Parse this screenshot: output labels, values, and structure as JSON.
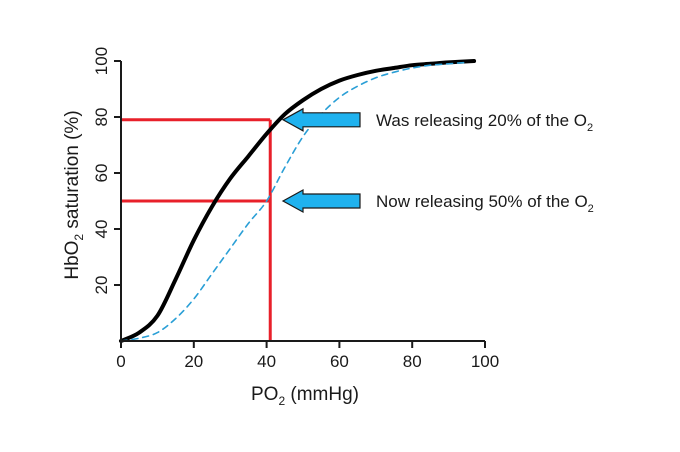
{
  "chart_data": {
    "type": "line",
    "xlabel": {
      "main": "PO",
      "sub": "2",
      "rest": " (mmHg)"
    },
    "ylabel": {
      "main": "HbO",
      "sub": "2",
      "rest": " saturation (%)"
    },
    "xlim": [
      0,
      100
    ],
    "ylim": [
      0,
      100
    ],
    "xticks": [
      0,
      20,
      40,
      60,
      80,
      100
    ],
    "yticks": [
      20,
      40,
      60,
      80,
      100
    ],
    "xtick_labels": [
      "0",
      "20",
      "40",
      "60",
      "80",
      "100"
    ],
    "ytick_labels": [
      "20",
      "40",
      "60",
      "80",
      "100"
    ],
    "grid": false,
    "series": [
      {
        "style": "solid",
        "color": "#000000",
        "x": [
          0,
          5,
          10,
          15,
          20,
          25,
          30,
          35,
          40,
          45,
          50,
          55,
          60,
          65,
          70,
          75,
          80,
          85,
          90,
          97
        ],
        "y": [
          0,
          3,
          9,
          22,
          36,
          48,
          58,
          66,
          74,
          81,
          86,
          90,
          93,
          95,
          96.5,
          97.5,
          98.5,
          99,
          99.5,
          100
        ]
      },
      {
        "style": "dashed",
        "color": "#2a9fd6",
        "x": [
          0,
          5,
          10,
          15,
          20,
          25,
          30,
          35,
          40,
          45,
          50,
          55,
          60,
          65,
          70,
          75,
          80,
          85,
          90,
          95
        ],
        "y": [
          0,
          1,
          3,
          8,
          15,
          24,
          33,
          42,
          50,
          62,
          73,
          81,
          87,
          91,
          94,
          96,
          97.5,
          98.5,
          99,
          99.5
        ]
      }
    ],
    "guides": [
      {
        "y": 79,
        "x_end": 41,
        "color": "#e8202a"
      },
      {
        "y": 50,
        "x_end": 41,
        "color": "#e8202a"
      }
    ],
    "guide_vertical": {
      "x": 41,
      "y_top": 79,
      "color": "#e8202a"
    },
    "annotations": [
      {
        "text": "Was releasing 20% of the O",
        "sub": "2",
        "y": 79,
        "arrow_color": "#1fb2ef"
      },
      {
        "text": "Now releasing 50% of the O",
        "sub": "2",
        "y": 50,
        "arrow_color": "#1fb2ef"
      }
    ]
  }
}
